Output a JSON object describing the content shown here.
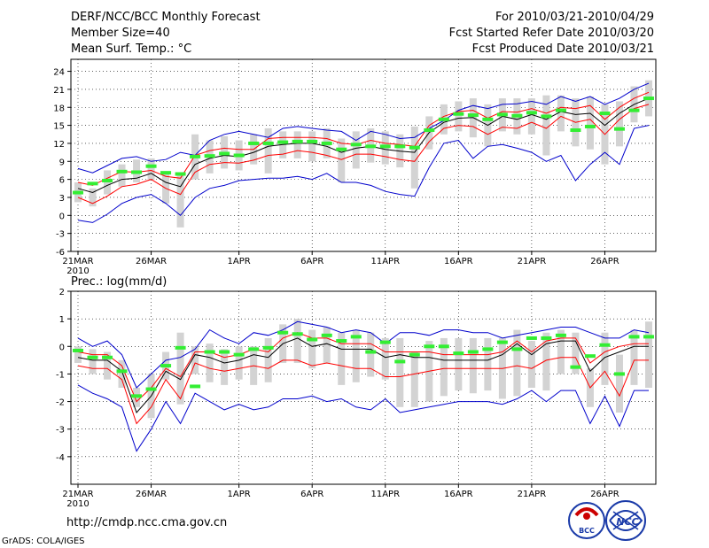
{
  "header": {
    "title": "DERF/NCC/BCC Monthly Forecast",
    "member_size": "Member Size=40",
    "variable": "Mean Surf. Temp.: °C",
    "period": "For 2010/03/21-2010/04/29",
    "fcst_started": "Fcst Started Refer Date 2010/03/20",
    "fcst_produced": "Fcst Produced Date 2010/03/21"
  },
  "footer": {
    "url": "http://cmdp.ncc.cma.gov.cn",
    "grads": "GrADS: COLA/IGES",
    "logo_bcc": "BCC",
    "logo_ncc": "NCC"
  },
  "colors": {
    "mean": "#000000",
    "spread": "#ff0000",
    "envelope": "#0000cc",
    "obs": "#33ee33",
    "box": "#d3d3d3"
  },
  "chart_data": [
    {
      "type": "line",
      "title": "Mean Surf. Temp.: °C",
      "ylabel": "°C",
      "ylim": [
        -6,
        26
      ],
      "yticks": [
        -6,
        -3,
        0,
        3,
        6,
        9,
        12,
        15,
        18,
        21,
        24
      ],
      "xticks": [
        "21MAR",
        "26MAR",
        "1APR",
        "6APR",
        "11APR",
        "16APR",
        "21APR",
        "26APR"
      ],
      "xticks_day": [
        1,
        6,
        12,
        17,
        22,
        27,
        32,
        37
      ],
      "year_label": "2010",
      "days": 40,
      "series": [
        {
          "name": "ensemble max",
          "values": [
            7.8,
            7.1,
            8.3,
            9.5,
            9.8,
            9.0,
            9.3,
            10.5,
            10.0,
            12.5,
            13.5,
            14.0,
            13.5,
            13.0,
            14.5,
            14.8,
            14.5,
            14.2,
            14.0,
            12.5,
            14.0,
            13.5,
            12.8,
            13.0,
            14.5,
            15.8,
            17.5,
            18.3,
            17.8,
            18.5,
            18.6,
            19.0,
            18.5,
            19.8,
            19.0,
            19.8,
            18.5,
            19.5,
            21.0,
            22.0
          ]
        },
        {
          "name": "upper spread",
          "values": [
            5.5,
            5.0,
            6.2,
            7.3,
            7.2,
            7.5,
            6.5,
            6.2,
            10.0,
            10.8,
            11.2,
            11.0,
            11.0,
            12.8,
            13.0,
            13.0,
            13.0,
            12.8,
            12.0,
            11.8,
            12.5,
            12.0,
            11.8,
            11.5,
            15.0,
            16.5,
            17.3,
            17.5,
            16.2,
            17.3,
            17.2,
            17.8,
            17.0,
            18.0,
            17.8,
            18.3,
            16.0,
            18.0,
            19.5,
            20.5
          ]
        },
        {
          "name": "ensemble mean",
          "values": [
            4.5,
            3.8,
            5.0,
            6.0,
            6.2,
            7.0,
            5.5,
            4.8,
            8.5,
            9.5,
            10.0,
            9.8,
            10.5,
            11.5,
            11.8,
            12.0,
            12.0,
            11.5,
            10.5,
            11.2,
            11.5,
            11.0,
            10.7,
            10.5,
            13.8,
            15.5,
            16.2,
            16.3,
            15.0,
            16.5,
            16.0,
            16.8,
            16.0,
            17.3,
            16.8,
            17.0,
            15.0,
            17.0,
            18.5,
            19.5
          ]
        },
        {
          "name": "lower spread",
          "values": [
            3.0,
            2.0,
            3.2,
            4.8,
            5.2,
            6.0,
            4.5,
            3.5,
            7.2,
            8.5,
            8.8,
            8.7,
            9.2,
            10.0,
            10.2,
            10.8,
            10.5,
            10.0,
            9.3,
            10.2,
            10.2,
            9.8,
            9.3,
            9.0,
            12.3,
            14.5,
            15.0,
            14.8,
            13.5,
            14.7,
            14.5,
            15.5,
            14.5,
            16.5,
            15.5,
            16.0,
            13.5,
            16.0,
            17.8,
            18.5
          ]
        },
        {
          "name": "ensemble min",
          "values": [
            -0.8,
            -1.2,
            0.2,
            2.0,
            3.0,
            3.5,
            2.0,
            0.0,
            3.0,
            4.5,
            5.0,
            5.8,
            6.0,
            6.2,
            6.2,
            6.5,
            6.0,
            7.0,
            5.5,
            5.5,
            5.0,
            4.0,
            3.5,
            3.2,
            8.0,
            12.0,
            12.5,
            9.5,
            11.5,
            11.8,
            11.2,
            10.5,
            9.0,
            10.0,
            5.8,
            8.5,
            10.5,
            8.5,
            14.5,
            15.0
          ]
        }
      ],
      "observed": [
        3.8,
        5.3,
        5.8,
        7.3,
        7.2,
        8.2,
        7.1,
        6.9,
        9.8,
        9.9,
        10.3,
        10.0,
        12.0,
        12.0,
        12.2,
        12.3,
        12.3,
        12.0,
        11.0,
        11.8,
        11.5,
        11.5,
        11.5,
        11.3,
        14.2,
        16.0,
        16.9,
        16.7,
        16.0,
        16.8,
        16.6,
        17.1,
        16.5,
        17.5,
        14.2,
        14.8,
        17.0,
        14.4,
        17.5,
        19.5
      ],
      "boxes": [
        [
          2.2,
          5.5
        ],
        [
          1.5,
          4.5
        ],
        [
          3.5,
          7.5
        ],
        [
          4.8,
          8.5
        ],
        [
          5.5,
          9.3
        ],
        [
          6.0,
          9.5
        ],
        [
          2.0,
          7.0
        ],
        [
          -2.0,
          7.0
        ],
        [
          6.0,
          13.5
        ],
        [
          7.0,
          12.5
        ],
        [
          7.8,
          13.2
        ],
        [
          7.5,
          12.5
        ],
        [
          8.5,
          13.5
        ],
        [
          7.0,
          14.5
        ],
        [
          9.5,
          14.0
        ],
        [
          9.5,
          14.0
        ],
        [
          9.0,
          14.0
        ],
        [
          9.5,
          14.5
        ],
        [
          5.5,
          12.8
        ],
        [
          7.8,
          14.0
        ],
        [
          8.8,
          14.5
        ],
        [
          8.5,
          14.0
        ],
        [
          8.0,
          13.5
        ],
        [
          4.5,
          14.8
        ],
        [
          11.0,
          16.5
        ],
        [
          13.5,
          18.5
        ],
        [
          14.0,
          19.0
        ],
        [
          13.0,
          19.5
        ],
        [
          11.5,
          18.5
        ],
        [
          14.0,
          19.5
        ],
        [
          13.5,
          19.5
        ],
        [
          13.5,
          19.5
        ],
        [
          10.0,
          20.0
        ],
        [
          14.0,
          20.0
        ],
        [
          11.5,
          19.5
        ],
        [
          11.0,
          19.8
        ],
        [
          8.5,
          18.5
        ],
        [
          11.5,
          19.0
        ],
        [
          15.5,
          21.5
        ],
        [
          16.5,
          22.5
        ]
      ]
    },
    {
      "type": "line",
      "title": "Prec.: log(mm/d)",
      "ylabel": "log(mm/d)",
      "ylim": [
        -5,
        2
      ],
      "yticks": [
        -4,
        -3,
        -2,
        -1,
        0,
        1,
        2
      ],
      "xticks": [
        "21MAR",
        "26MAR",
        "1APR",
        "6APR",
        "11APR",
        "16APR",
        "21APR",
        "26APR"
      ],
      "xticks_day": [
        1,
        6,
        12,
        17,
        22,
        27,
        32,
        37
      ],
      "year_label": "2010",
      "days": 40,
      "series": [
        {
          "name": "ensemble max",
          "values": [
            0.3,
            0.0,
            0.2,
            -0.3,
            -1.5,
            -1.0,
            -0.5,
            -0.4,
            -0.1,
            0.6,
            0.3,
            0.1,
            0.5,
            0.4,
            0.6,
            0.9,
            0.8,
            0.7,
            0.5,
            0.6,
            0.5,
            0.1,
            0.5,
            0.5,
            0.4,
            0.6,
            0.6,
            0.5,
            0.5,
            0.3,
            0.4,
            0.5,
            0.6,
            0.7,
            0.7,
            0.5,
            0.3,
            0.3,
            0.6,
            0.5
          ]
        },
        {
          "name": "upper spread",
          "values": [
            -0.2,
            -0.3,
            -0.3,
            -0.7,
            -2.0,
            -1.5,
            -0.8,
            -1.1,
            -0.2,
            -0.2,
            -0.4,
            -0.3,
            -0.1,
            -0.2,
            0.3,
            0.5,
            0.3,
            0.3,
            0.1,
            0.1,
            0.1,
            -0.2,
            -0.2,
            -0.2,
            -0.2,
            -0.3,
            -0.3,
            -0.3,
            -0.3,
            -0.2,
            0.2,
            -0.2,
            0.2,
            0.3,
            0.3,
            -0.6,
            -0.2,
            0.0,
            0.1,
            0.1
          ]
        },
        {
          "name": "ensemble mean",
          "values": [
            -0.4,
            -0.5,
            -0.5,
            -0.9,
            -2.4,
            -1.8,
            -0.9,
            -1.2,
            -0.3,
            -0.4,
            -0.6,
            -0.5,
            -0.3,
            -0.4,
            0.1,
            0.3,
            0.0,
            0.1,
            -0.1,
            -0.1,
            -0.1,
            -0.4,
            -0.3,
            -0.4,
            -0.4,
            -0.5,
            -0.5,
            -0.5,
            -0.5,
            -0.3,
            0.1,
            -0.3,
            0.1,
            0.2,
            0.2,
            -0.9,
            -0.4,
            -0.2,
            0.0,
            0.0
          ]
        },
        {
          "name": "lower spread",
          "values": [
            -0.7,
            -0.8,
            -0.8,
            -1.2,
            -2.8,
            -2.2,
            -1.2,
            -1.9,
            -0.6,
            -0.8,
            -0.9,
            -0.8,
            -0.7,
            -0.8,
            -0.5,
            -0.5,
            -0.7,
            -0.6,
            -0.7,
            -0.8,
            -0.8,
            -1.1,
            -1.1,
            -1.0,
            -0.9,
            -0.8,
            -0.8,
            -0.8,
            -0.8,
            -0.8,
            -0.7,
            -0.8,
            -0.5,
            -0.4,
            -0.4,
            -1.5,
            -0.9,
            -1.8,
            -0.5,
            -0.5
          ]
        },
        {
          "name": "ensemble min",
          "values": [
            -1.4,
            -1.7,
            -1.9,
            -2.2,
            -3.8,
            -3.0,
            -2.0,
            -2.8,
            -1.7,
            -2.0,
            -2.3,
            -2.1,
            -2.3,
            -2.2,
            -1.9,
            -1.9,
            -1.8,
            -2.0,
            -1.9,
            -2.2,
            -2.3,
            -1.9,
            -2.4,
            -2.3,
            -2.2,
            -2.1,
            -2.0,
            -2.0,
            -2.0,
            -2.1,
            -1.9,
            -1.6,
            -2.0,
            -1.6,
            -1.6,
            -2.8,
            -1.8,
            -2.9,
            -1.6,
            -1.6
          ]
        }
      ],
      "observed": [
        -0.15,
        -0.4,
        -0.4,
        -0.9,
        -1.8,
        -1.55,
        -0.7,
        -0.05,
        -1.45,
        -0.2,
        -0.2,
        -0.3,
        -0.1,
        -0.05,
        0.5,
        0.45,
        0.25,
        0.4,
        0.2,
        0.35,
        -0.2,
        0.15,
        -0.55,
        -0.3,
        0.0,
        0.0,
        -0.25,
        -0.2,
        -0.1,
        0.15,
        -0.1,
        0.3,
        0.3,
        0.4,
        -0.75,
        -0.35,
        0.05,
        -1.0,
        0.35,
        0.35
      ],
      "boxes": [
        [
          -0.6,
          0.0
        ],
        [
          -1.0,
          -0.1
        ],
        [
          -1.2,
          -0.2
        ],
        [
          -1.5,
          -0.5
        ],
        [
          -2.2,
          -1.5
        ],
        [
          -2.6,
          -1.0
        ],
        [
          -1.2,
          -0.2
        ],
        [
          -2.1,
          0.5
        ],
        [
          -1.0,
          0.0
        ],
        [
          -1.3,
          0.1
        ],
        [
          -1.4,
          -0.1
        ],
        [
          -1.2,
          0.0
        ],
        [
          -1.4,
          0.0
        ],
        [
          -1.3,
          0.3
        ],
        [
          -0.6,
          0.8
        ],
        [
          -0.6,
          1.0
        ],
        [
          -0.8,
          0.6
        ],
        [
          -0.6,
          0.7
        ],
        [
          -1.4,
          0.5
        ],
        [
          -1.3,
          0.6
        ],
        [
          -1.1,
          0.5
        ],
        [
          -1.2,
          0.3
        ],
        [
          -2.2,
          0.3
        ],
        [
          -2.2,
          -0.2
        ],
        [
          -2.0,
          0.2
        ],
        [
          -1.8,
          0.3
        ],
        [
          -1.6,
          0.3
        ],
        [
          -1.7,
          0.3
        ],
        [
          -1.6,
          0.3
        ],
        [
          -1.9,
          0.3
        ],
        [
          -1.8,
          0.6
        ],
        [
          -1.5,
          0.2
        ],
        [
          -1.6,
          0.5
        ],
        [
          -1.0,
          0.6
        ],
        [
          -1.0,
          0.5
        ],
        [
          -2.2,
          -0.8
        ],
        [
          -1.4,
          0.5
        ],
        [
          -2.4,
          -0.3
        ],
        [
          -1.4,
          0.6
        ],
        [
          -1.5,
          0.9
        ]
      ]
    }
  ]
}
